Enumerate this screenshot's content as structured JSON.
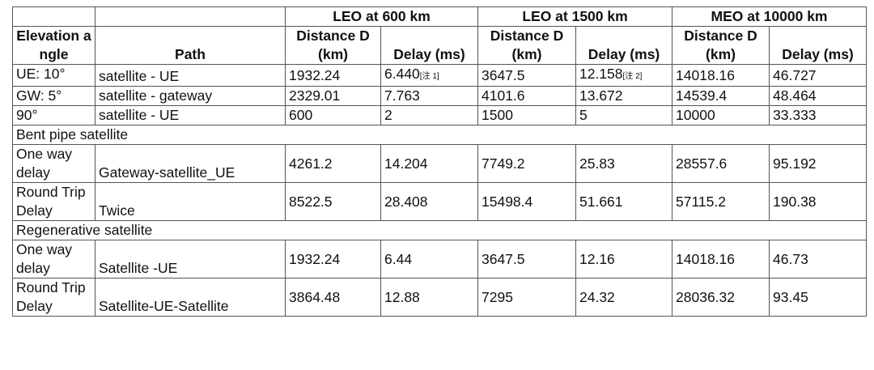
{
  "table": {
    "groups": [
      "LEO at 600 km",
      "LEO at 1500 km",
      "MEO at 10000 km"
    ],
    "columns": [
      "Elevation angle",
      "Path",
      "Distance D (km)",
      "Delay (ms)",
      "Distance D (km)",
      "Delay (ms)",
      "Distance D (km)",
      "Delay (ms)"
    ],
    "rows": [
      {
        "cells": [
          "UE: 10°",
          "satellite - UE",
          "1932.24",
          {
            "text": "6.440",
            "note": "[注 1]"
          },
          "3647.5",
          {
            "text": "12.158",
            "note": "[注 2]"
          },
          "14018.16",
          "46.727"
        ]
      },
      {
        "cells": [
          "GW: 5°",
          "satellite - gateway",
          "2329.01",
          "7.763",
          "4101.6",
          "13.672",
          "14539.4",
          "48.464"
        ]
      },
      {
        "cells": [
          "90°",
          "satellite - UE",
          "600",
          "2",
          "1500",
          "5",
          "10000",
          "33.333"
        ]
      },
      {
        "section": "Bent pipe satellite"
      },
      {
        "cells": [
          "One way delay",
          "Gateway-satellite_UE",
          "4261.2",
          "14.204",
          "7749.2",
          "25.83",
          "28557.6",
          "95.192"
        ]
      },
      {
        "cells": [
          "Round Trip Delay",
          "Twice",
          "8522.5",
          "28.408",
          "15498.4",
          "51.661",
          "57115.2",
          "190.38"
        ]
      },
      {
        "section": "Regenerative satellite"
      },
      {
        "cells": [
          "One way delay",
          "Satellite -UE",
          "1932.24",
          "6.44",
          "3647.5",
          "12.16",
          "14018.16",
          "46.73"
        ]
      },
      {
        "cells": [
          "Round Trip Delay",
          "Satellite-UE-Satellite",
          "3864.48",
          "12.88",
          "7295",
          "24.32",
          "28036.32",
          "93.45"
        ]
      }
    ]
  }
}
